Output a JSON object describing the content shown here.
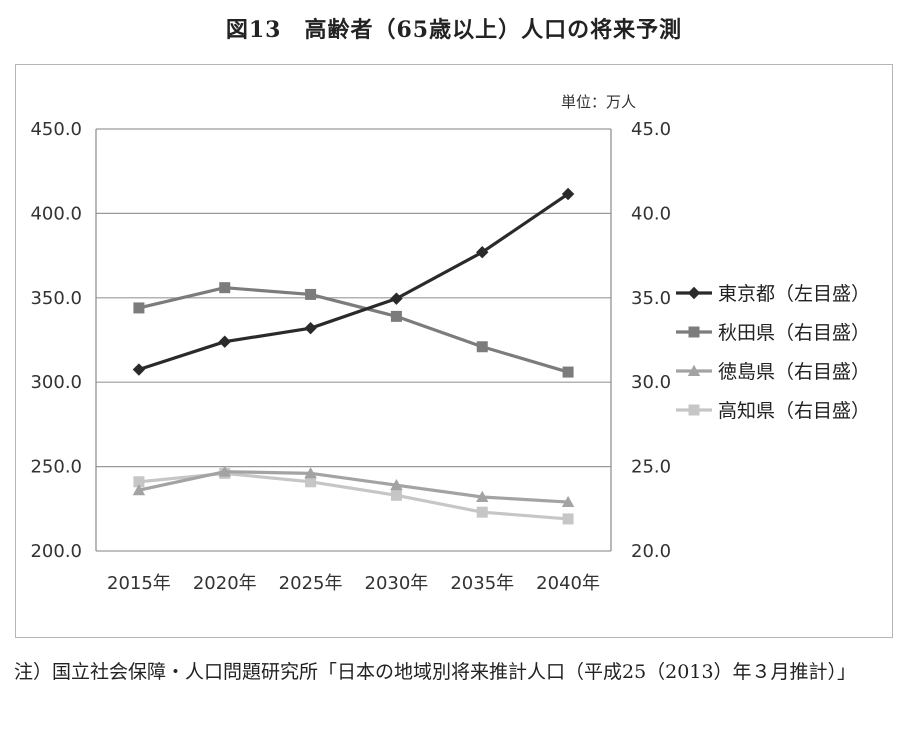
{
  "title": "図13　高齢者（65歳以上）人口の将来予測",
  "note": "注）国立社会保障・人口問題研究所「日本の地域別将来推計人口（平成25（2013）年３月推計）」",
  "chart_data": {
    "type": "line",
    "unit_label": "単位：万人",
    "categories": [
      "2015年",
      "2020年",
      "2025年",
      "2030年",
      "2035年",
      "2040年"
    ],
    "y_left": {
      "ticks": [
        "450.0",
        "400.0",
        "350.0",
        "300.0",
        "250.0",
        "200.0"
      ],
      "ylim": [
        200,
        450
      ]
    },
    "y_right": {
      "ticks": [
        "45.0",
        "40.0",
        "35.0",
        "30.0",
        "25.0",
        "20.0"
      ],
      "ylim": [
        20,
        45
      ]
    },
    "grid": true,
    "legend_position": "right",
    "series": [
      {
        "name": "東京都（左目盛）",
        "axis": "left",
        "marker": "diamond",
        "color": "#2a2a2a",
        "values": [
          307.5,
          324,
          332,
          349.5,
          377,
          411.5
        ]
      },
      {
        "name": "秋田県（右目盛）",
        "axis": "right",
        "marker": "square",
        "color": "#7c7c7c",
        "values": [
          34.4,
          35.6,
          35.2,
          33.9,
          32.1,
          30.6
        ]
      },
      {
        "name": "徳島県（右目盛）",
        "axis": "right",
        "marker": "triangle",
        "color": "#a3a3a3",
        "values": [
          23.6,
          24.7,
          24.6,
          23.9,
          23.2,
          22.9
        ]
      },
      {
        "name": "高知県（右目盛）",
        "axis": "right",
        "marker": "square",
        "color": "#c6c6c6",
        "values": [
          24.1,
          24.6,
          24.1,
          23.3,
          22.3,
          21.9
        ]
      }
    ]
  }
}
